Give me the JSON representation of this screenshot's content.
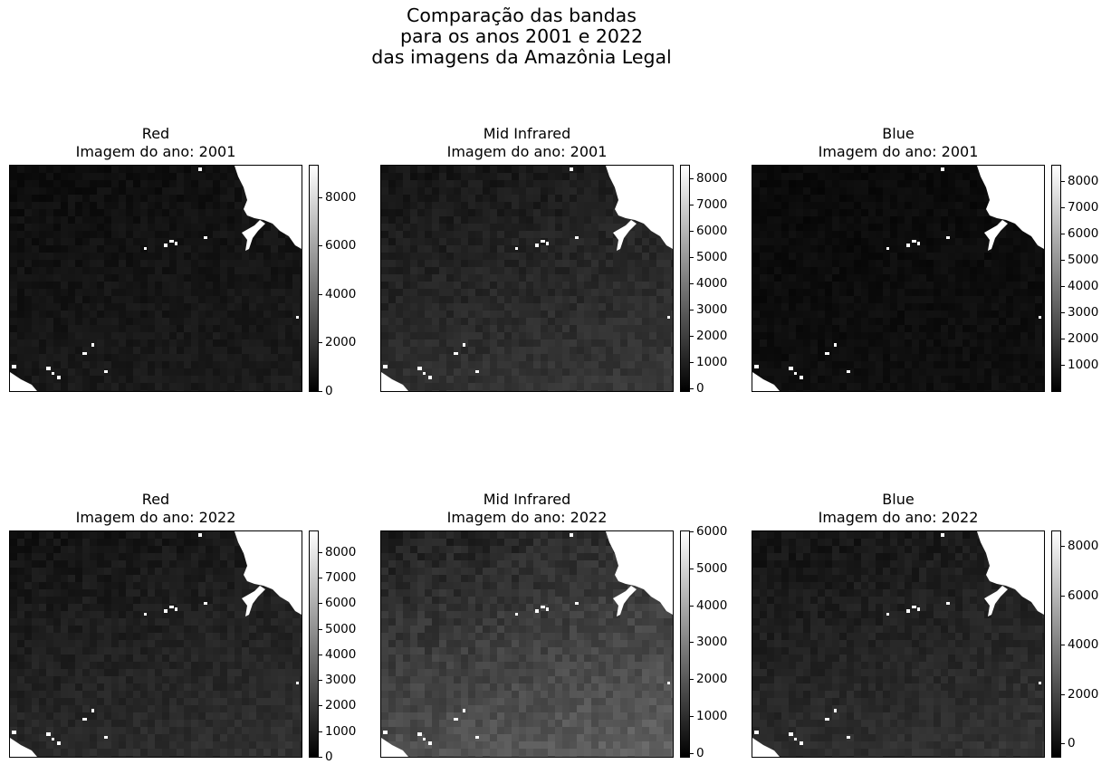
{
  "chart_data": {
    "type": "image-grid",
    "suptitle": "Comparação das bandas\npara os anos 2001 e 2022\ndas imagens da Amazônia Legal",
    "colormap": "gray",
    "panels": [
      {
        "band": "Red",
        "title": "Red\nImagem do ano: 2001",
        "year": 2001,
        "colorbar": {
          "min": 0,
          "max": 9300,
          "ticks": [
            0,
            2000,
            4000,
            6000,
            8000
          ]
        },
        "brightness": 0.05
      },
      {
        "band": "Mid Infrared",
        "title": "Mid Infrared\nImagem do ano: 2001",
        "year": 2001,
        "colorbar": {
          "min": -100,
          "max": 8500,
          "ticks": [
            0,
            1000,
            2000,
            3000,
            4000,
            5000,
            6000,
            7000,
            8000
          ]
        },
        "brightness": 0.12
      },
      {
        "band": "Blue",
        "title": "Blue\nImagem do ano: 2001",
        "year": 2001,
        "colorbar": {
          "min": 0,
          "max": 8600,
          "ticks": [
            1000,
            2000,
            3000,
            4000,
            5000,
            6000,
            7000,
            8000
          ]
        },
        "brightness": 0.02
      },
      {
        "band": "Red",
        "title": "Red\nImagem do ano: 2022",
        "year": 2022,
        "colorbar": {
          "min": 0,
          "max": 8800,
          "ticks": [
            0,
            1000,
            2000,
            3000,
            4000,
            5000,
            6000,
            7000,
            8000
          ]
        },
        "brightness": 0.1
      },
      {
        "band": "Mid Infrared",
        "title": "Mid Infrared\nImagem do ano: 2022",
        "year": 2022,
        "colorbar": {
          "min": -100,
          "max": 6000,
          "ticks": [
            0,
            1000,
            2000,
            3000,
            4000,
            5000,
            6000
          ]
        },
        "brightness": 0.22
      },
      {
        "band": "Blue",
        "title": "Blue\nImagem do ano: 2022",
        "year": 2022,
        "colorbar": {
          "min": -550,
          "max": 8600,
          "ticks": [
            0,
            2000,
            4000,
            6000,
            8000
          ]
        },
        "brightness": 0.11
      }
    ]
  }
}
